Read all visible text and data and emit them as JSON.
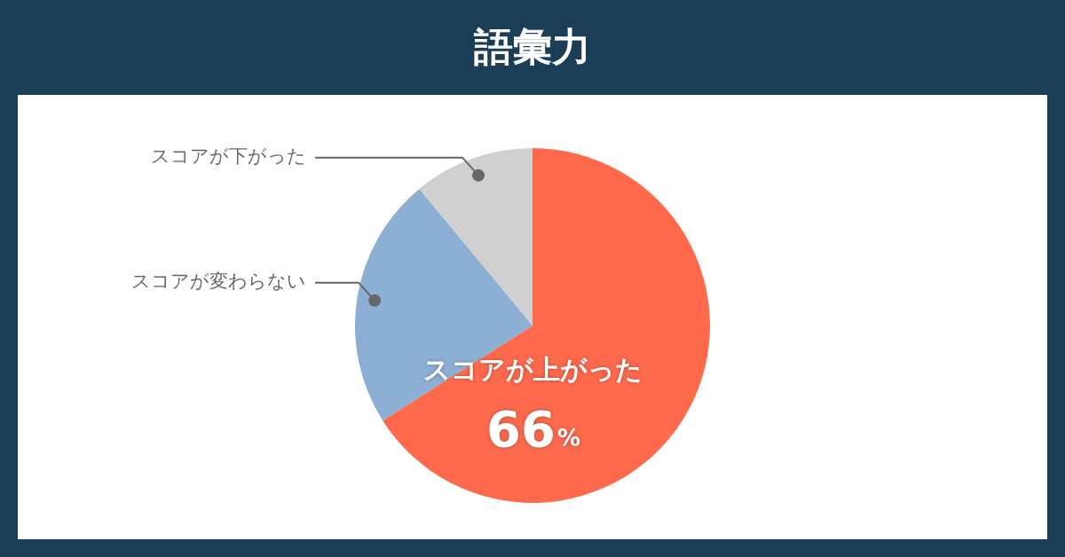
{
  "chart_data": {
    "type": "pie",
    "title": "語彙力",
    "categories": [
      "スコアが上がった",
      "スコアが変わらない",
      "スコアが下がった"
    ],
    "values": [
      66,
      23,
      11
    ],
    "colors": [
      "#ff6a4d",
      "#8cb0d3",
      "#d0d0d0"
    ],
    "value_labels": [
      "66%",
      null,
      null
    ],
    "legend": false
  }
}
